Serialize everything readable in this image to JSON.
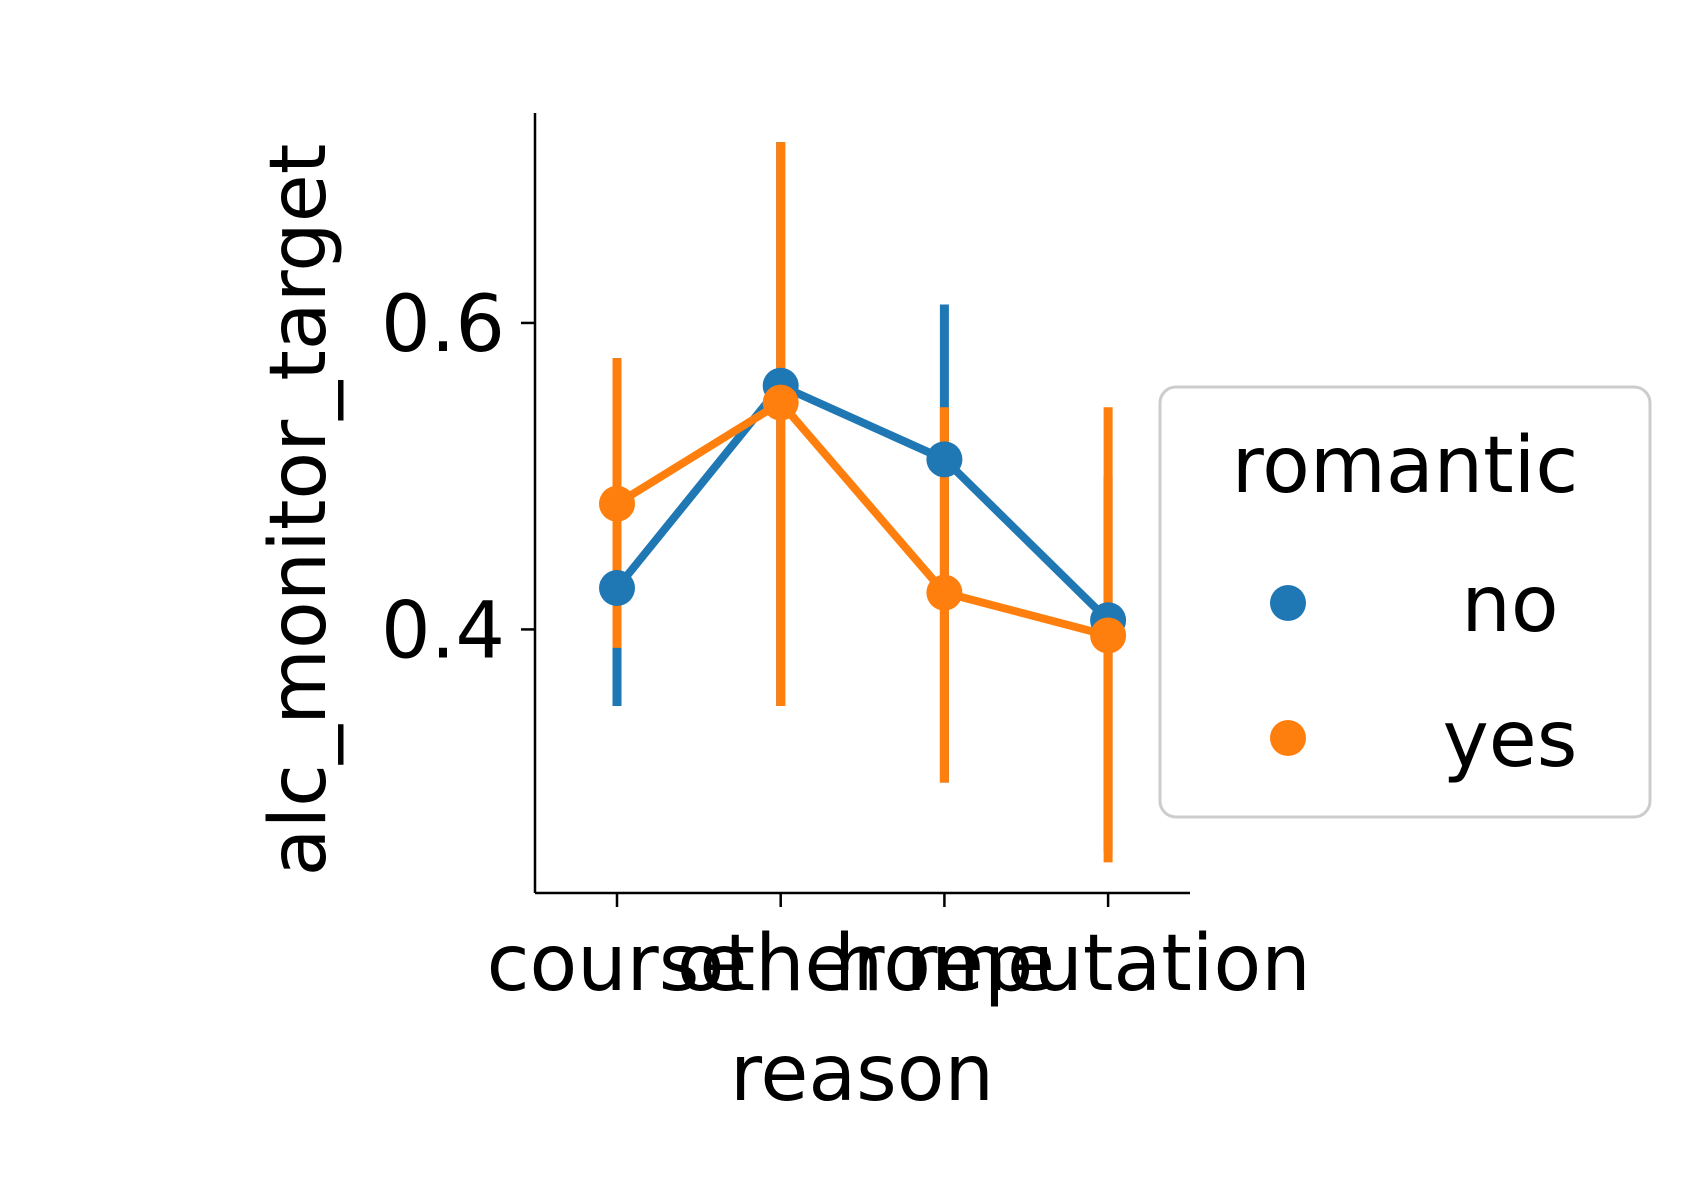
{
  "chart_data": {
    "type": "line",
    "xlabel": "reason",
    "ylabel": "alc_monitor_target",
    "categories": [
      "course",
      "other",
      "home",
      "reputation"
    ],
    "y_ticks": [
      0.4,
      0.6
    ],
    "y_tick_labels": [
      "0.4",
      "0.6"
    ],
    "ylim": [
      0.228,
      0.737
    ],
    "grid": false,
    "legend": {
      "title": "romantic",
      "placement": "right",
      "entries": [
        "no",
        "yes"
      ]
    },
    "series": [
      {
        "name": "no",
        "color": "#1f77b4",
        "values": [
          0.427,
          0.559,
          0.511,
          0.406
        ],
        "ci_low": [
          0.35,
          0.35,
          0.3,
          0.255
        ],
        "ci_high": [
          0.577,
          0.718,
          0.612,
          0.5
        ]
      },
      {
        "name": "yes",
        "color": "#ff7f0e",
        "values": [
          0.482,
          0.548,
          0.424,
          0.396
        ],
        "ci_low": [
          0.388,
          0.35,
          0.3,
          0.248
        ],
        "ci_high": [
          0.577,
          0.718,
          0.545,
          0.545
        ]
      }
    ]
  }
}
